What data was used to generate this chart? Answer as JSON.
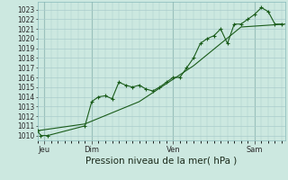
{
  "xlabel": "Pression niveau de la mer( hPa )",
  "bg_color": "#cce8e0",
  "grid_color": "#aacccc",
  "line_color": "#1a5c1a",
  "ylim": [
    1009.5,
    1023.8
  ],
  "yticks": [
    1010,
    1011,
    1012,
    1013,
    1014,
    1015,
    1016,
    1017,
    1018,
    1019,
    1020,
    1021,
    1022,
    1023
  ],
  "xlim": [
    0,
    73
  ],
  "series1_x": [
    0,
    1,
    3,
    14,
    16,
    18,
    20,
    22,
    24,
    26,
    28,
    30,
    32,
    34,
    36,
    38,
    40,
    42,
    44,
    46,
    48,
    50,
    52,
    54,
    56,
    58,
    60,
    62,
    64,
    66,
    68,
    70,
    72
  ],
  "series1_y": [
    1010.5,
    1010.0,
    1010.0,
    1011.0,
    1013.5,
    1014.0,
    1014.1,
    1013.8,
    1015.5,
    1015.2,
    1015.0,
    1015.2,
    1014.8,
    1014.6,
    1015.0,
    1015.5,
    1016.0,
    1016.0,
    1017.0,
    1018.0,
    1019.5,
    1020.0,
    1020.3,
    1021.0,
    1019.5,
    1021.5,
    1021.5,
    1022.0,
    1022.5,
    1023.2,
    1022.8,
    1021.5,
    1021.5
  ],
  "series2_x": [
    0,
    14,
    30,
    46,
    60,
    73
  ],
  "series2_y": [
    1010.5,
    1011.2,
    1013.5,
    1017.2,
    1021.2,
    1021.5
  ],
  "xtick_positions": [
    2,
    16,
    40,
    64
  ],
  "xtick_labels": [
    "Jeu",
    "Dim",
    "Ven",
    "Sam"
  ],
  "vline_positions": [
    2,
    16,
    40,
    64
  ],
  "ytick_fontsize": 5.5,
  "xtick_fontsize": 6.0,
  "xlabel_fontsize": 7.5
}
